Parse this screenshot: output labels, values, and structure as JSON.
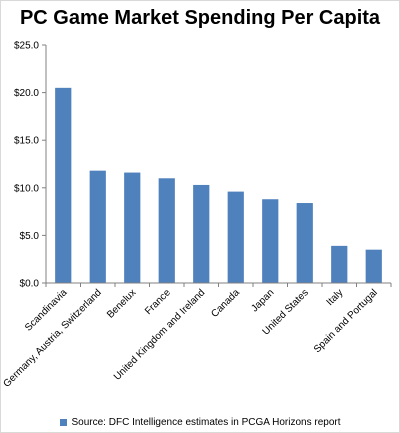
{
  "chart_data": {
    "type": "bar",
    "title": "PC Game Market Spending Per Capita",
    "categories": [
      "Scandinavia",
      "Germany, Austria, Switzerland",
      "Benelux",
      "France",
      "United Kingdom and Ireland",
      "Canada",
      "Japan",
      "United States",
      "Italy",
      "Spain and Portugal"
    ],
    "series": [
      {
        "name": "Source: DFC Intelligence estimates  in PCGA Horizons report",
        "color": "#4f81bd",
        "values": [
          20.5,
          11.8,
          11.6,
          11.0,
          10.3,
          9.6,
          8.8,
          8.4,
          3.9,
          3.5
        ]
      }
    ],
    "ylim": [
      0,
      25
    ],
    "yticks": [
      0,
      5,
      10,
      15,
      20,
      25
    ],
    "ytick_labels": [
      "$0.0",
      "$5.0",
      "$10.0",
      "$15.0",
      "$20.0",
      "$25.0"
    ],
    "xlabel": "",
    "ylabel": "",
    "grid": false,
    "legend_position": "bottom"
  }
}
